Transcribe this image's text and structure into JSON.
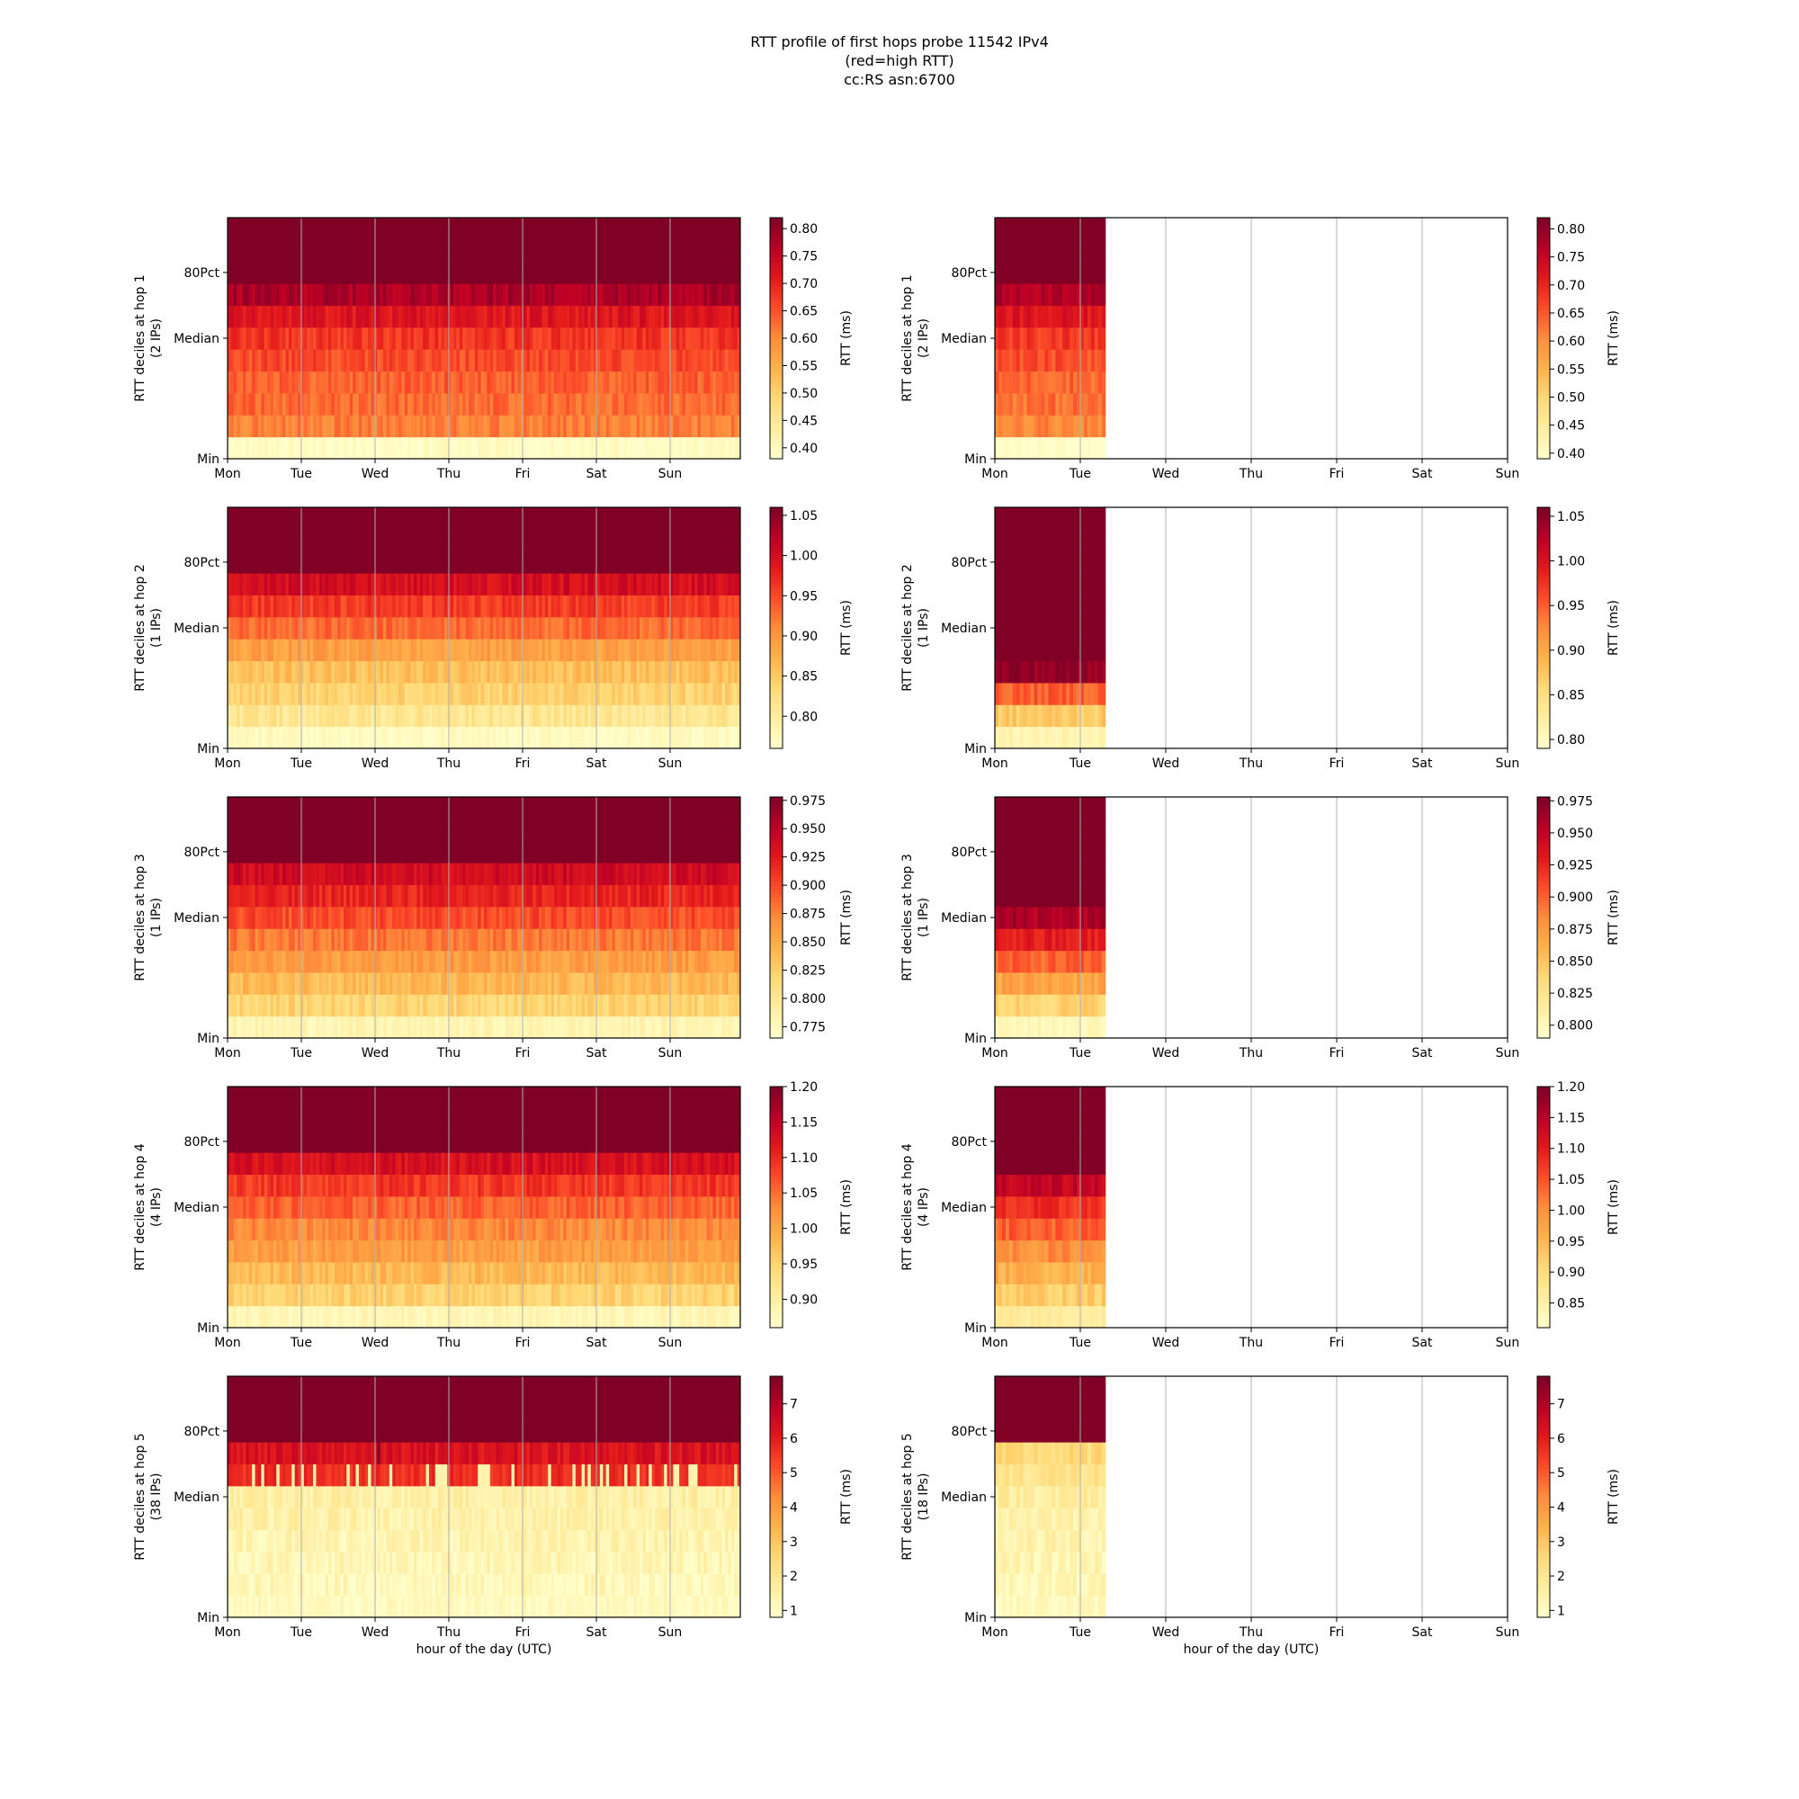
{
  "title": {
    "line1": "RTT profile of first hops probe 11542 IPv4",
    "line2": "(red=high RTT)",
    "line3": "cc:RS asn:6700"
  },
  "colormap": [
    "#ffffcc",
    "#ffeda0",
    "#fed976",
    "#feb24c",
    "#fd8d3c",
    "#fc4e2a",
    "#e31a1c",
    "#bd0026",
    "#800026"
  ],
  "chart_data": [
    {
      "type": "heatmap",
      "panel": "left",
      "hop": 1,
      "ylabel": "RTT deciles at hop 1",
      "ylabel_sub": "(2 IPs)",
      "xlabel": "",
      "x_ticks": [
        "Mon",
        "Tue",
        "Wed",
        "Thu",
        "Fri",
        "Sat",
        "Sun"
      ],
      "y_ticks": [
        "Min",
        "Median",
        "80Pct"
      ],
      "coverage_days": 7,
      "decile_rtt_ms": [
        0.39,
        0.61,
        0.63,
        0.64,
        0.66,
        0.68,
        0.72,
        0.78,
        0.85,
        0.85,
        0.85
      ],
      "colorbar_label": "RTT (ms)",
      "colorbar_range": [
        0.38,
        0.82
      ],
      "colorbar_ticks": [
        "0.40",
        "0.45",
        "0.50",
        "0.55",
        "0.60",
        "0.65",
        "0.70",
        "0.75",
        "0.80"
      ]
    },
    {
      "type": "heatmap",
      "panel": "right",
      "hop": 1,
      "ylabel": "RTT deciles at hop 1",
      "ylabel_sub": "(2 IPs)",
      "xlabel": "",
      "x_ticks": [
        "Mon",
        "Tue",
        "Wed",
        "Thu",
        "Fri",
        "Sat",
        "Sun"
      ],
      "y_ticks": [
        "Min",
        "Median",
        "80Pct"
      ],
      "coverage_days": 1.3,
      "decile_rtt_ms": [
        0.39,
        0.61,
        0.63,
        0.64,
        0.66,
        0.68,
        0.72,
        0.78,
        0.85,
        0.85,
        0.85
      ],
      "colorbar_label": "RTT (ms)",
      "colorbar_range": [
        0.39,
        0.82
      ],
      "colorbar_ticks": [
        "0.40",
        "0.45",
        "0.50",
        "0.55",
        "0.60",
        "0.65",
        "0.70",
        "0.75",
        "0.80"
      ]
    },
    {
      "type": "heatmap",
      "panel": "left",
      "hop": 2,
      "ylabel": "RTT deciles at hop 2",
      "ylabel_sub": "(1 IPs)",
      "xlabel": "",
      "x_ticks": [
        "Mon",
        "Tue",
        "Wed",
        "Thu",
        "Fri",
        "Sat",
        "Sun"
      ],
      "y_ticks": [
        "Min",
        "Median",
        "80Pct"
      ],
      "coverage_days": 7,
      "decile_rtt_ms": [
        0.77,
        0.81,
        0.84,
        0.86,
        0.89,
        0.93,
        0.96,
        1.0,
        1.08,
        1.08,
        1.08
      ],
      "colorbar_label": "RTT (ms)",
      "colorbar_range": [
        0.76,
        1.06
      ],
      "colorbar_ticks": [
        "0.80",
        "0.85",
        "0.90",
        "0.95",
        "1.00",
        "1.05"
      ]
    },
    {
      "type": "heatmap",
      "panel": "right",
      "hop": 2,
      "ylabel": "RTT deciles at hop 2",
      "ylabel_sub": "(1 IPs)",
      "xlabel": "",
      "x_ticks": [
        "Mon",
        "Tue",
        "Wed",
        "Thu",
        "Fri",
        "Sat",
        "Sun"
      ],
      "y_ticks": [
        "Min",
        "Median",
        "80Pct"
      ],
      "coverage_days": 1.3,
      "decile_rtt_ms": [
        0.81,
        0.87,
        0.95,
        1.05,
        1.08,
        1.08,
        1.08,
        1.08,
        1.08,
        1.08,
        1.08
      ],
      "colorbar_label": "RTT (ms)",
      "colorbar_range": [
        0.79,
        1.06
      ],
      "colorbar_ticks": [
        "0.80",
        "0.85",
        "0.90",
        "0.95",
        "1.00",
        "1.05"
      ]
    },
    {
      "type": "heatmap",
      "panel": "left",
      "hop": 3,
      "ylabel": "RTT deciles at hop 3",
      "ylabel_sub": "(1 IPs)",
      "xlabel": "",
      "x_ticks": [
        "Mon",
        "Tue",
        "Wed",
        "Thu",
        "Fri",
        "Sat",
        "Sun"
      ],
      "y_ticks": [
        "Min",
        "Median",
        "80Pct"
      ],
      "coverage_days": 7,
      "decile_rtt_ms": [
        0.78,
        0.82,
        0.84,
        0.86,
        0.88,
        0.9,
        0.92,
        0.94,
        0.99,
        0.99,
        0.99
      ],
      "colorbar_label": "RTT (ms)",
      "colorbar_range": [
        0.765,
        0.978
      ],
      "colorbar_ticks": [
        "0.775",
        "0.800",
        "0.825",
        "0.850",
        "0.875",
        "0.900",
        "0.925",
        "0.950",
        "0.975"
      ]
    },
    {
      "type": "heatmap",
      "panel": "right",
      "hop": 3,
      "ylabel": "RTT deciles at hop 3",
      "ylabel_sub": "(1 IPs)",
      "xlabel": "",
      "x_ticks": [
        "Mon",
        "Tue",
        "Wed",
        "Thu",
        "Fri",
        "Sat",
        "Sun"
      ],
      "y_ticks": [
        "Min",
        "Median",
        "80Pct"
      ],
      "coverage_days": 1.3,
      "decile_rtt_ms": [
        0.8,
        0.84,
        0.87,
        0.9,
        0.93,
        0.96,
        0.99,
        0.99,
        0.99,
        0.99,
        0.99
      ],
      "colorbar_label": "RTT (ms)",
      "colorbar_range": [
        0.79,
        0.978
      ],
      "colorbar_ticks": [
        "0.800",
        "0.825",
        "0.850",
        "0.875",
        "0.900",
        "0.925",
        "0.950",
        "0.975"
      ]
    },
    {
      "type": "heatmap",
      "panel": "left",
      "hop": 4,
      "ylabel": "RTT deciles at hop 4",
      "ylabel_sub": "(4 IPs)",
      "xlabel": "",
      "x_ticks": [
        "Mon",
        "Tue",
        "Wed",
        "Thu",
        "Fri",
        "Sat",
        "Sun"
      ],
      "y_ticks": [
        "Min",
        "Median",
        "80Pct"
      ],
      "coverage_days": 7,
      "decile_rtt_ms": [
        0.88,
        0.95,
        0.98,
        1.01,
        1.03,
        1.06,
        1.09,
        1.13,
        1.22,
        1.22,
        1.22
      ],
      "colorbar_label": "RTT (ms)",
      "colorbar_range": [
        0.86,
        1.2
      ],
      "colorbar_ticks": [
        "0.90",
        "0.95",
        "1.00",
        "1.05",
        "1.10",
        "1.15",
        "1.20"
      ]
    },
    {
      "type": "heatmap",
      "panel": "right",
      "hop": 4,
      "ylabel": "RTT deciles at hop 4",
      "ylabel_sub": "(4 IPs)",
      "xlabel": "",
      "x_ticks": [
        "Mon",
        "Tue",
        "Wed",
        "Thu",
        "Fri",
        "Sat",
        "Sun"
      ],
      "y_ticks": [
        "Min",
        "Median",
        "80Pct"
      ],
      "coverage_days": 1.3,
      "decile_rtt_ms": [
        0.86,
        0.92,
        0.96,
        1.0,
        1.04,
        1.08,
        1.14,
        1.22,
        1.22,
        1.22,
        1.22
      ],
      "colorbar_label": "RTT (ms)",
      "colorbar_range": [
        0.81,
        1.2
      ],
      "colorbar_ticks": [
        "0.85",
        "0.90",
        "0.95",
        "1.00",
        "1.05",
        "1.10",
        "1.15",
        "1.20"
      ]
    },
    {
      "type": "heatmap",
      "panel": "left",
      "hop": 5,
      "ylabel": "RTT deciles at hop 5",
      "ylabel_sub": "(38 IPs)",
      "xlabel": "hour of the day (UTC)",
      "x_ticks": [
        "Mon",
        "Tue",
        "Wed",
        "Thu",
        "Fri",
        "Sat",
        "Sun"
      ],
      "y_ticks": [
        "Min",
        "Median",
        "80Pct"
      ],
      "coverage_days": 7,
      "decile_rtt_ms": [
        1.05,
        1.15,
        1.25,
        1.35,
        1.45,
        1.55,
        5.8,
        6.3,
        8.0,
        8.0,
        8.0
      ],
      "colorbar_label": "RTT (ms)",
      "colorbar_range": [
        0.8,
        7.8
      ],
      "colorbar_ticks": [
        "1",
        "2",
        "3",
        "4",
        "5",
        "6",
        "7"
      ]
    },
    {
      "type": "heatmap",
      "panel": "right",
      "hop": 5,
      "ylabel": "RTT deciles at hop 5",
      "ylabel_sub": "(18 IPs)",
      "xlabel": "hour of the day (UTC)",
      "x_ticks": [
        "Mon",
        "Tue",
        "Wed",
        "Thu",
        "Fri",
        "Sat",
        "Sun"
      ],
      "y_ticks": [
        "Min",
        "Median",
        "80Pct"
      ],
      "coverage_days": 1.3,
      "decile_rtt_ms": [
        1.1,
        1.2,
        1.3,
        1.4,
        1.5,
        1.7,
        2.1,
        2.4,
        6.3,
        7.0,
        8.0
      ],
      "colorbar_label": "RTT (ms)",
      "colorbar_range": [
        0.8,
        7.8
      ],
      "colorbar_ticks": [
        "1",
        "2",
        "3",
        "4",
        "5",
        "6",
        "7"
      ]
    }
  ]
}
